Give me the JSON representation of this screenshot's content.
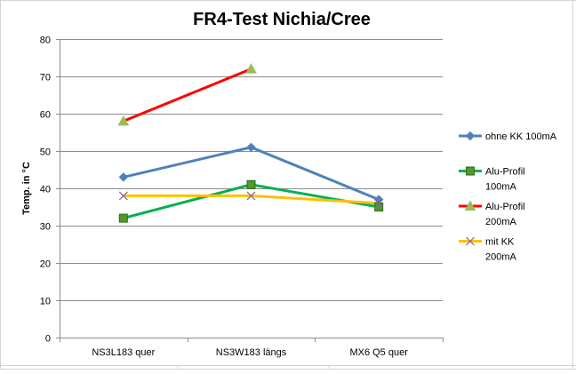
{
  "colors": {
    "gridline": "#8c8c8c",
    "axis": "#8c8c8c",
    "text": "#000000",
    "sheet_grid": "#d4d4d4"
  },
  "chart_data": {
    "type": "line",
    "title": "FR4-Test Nichia/Cree",
    "xlabel": "",
    "ylabel": "Temp. in °C",
    "categories": [
      "NS3L183 quer",
      "NS3W183 längs",
      "MX6 Q5 quer"
    ],
    "ylim": [
      0,
      80
    ],
    "yticks": [
      0,
      10,
      20,
      30,
      40,
      50,
      60,
      70,
      80
    ],
    "grid": true,
    "legend_position": "right",
    "series": [
      {
        "name": "ohne KK 100mA",
        "legend_lines": [
          "ohne KK 100mA"
        ],
        "values": [
          43,
          51,
          37
        ],
        "color": "#4f81bd",
        "marker": "diamond",
        "marker_fill": "#4f81bd"
      },
      {
        "name": "Alu-Profil 100mA",
        "legend_lines": [
          "Alu-Profil",
          "100mA"
        ],
        "values": [
          32,
          41,
          35
        ],
        "color": "#00b050",
        "marker": "square",
        "marker_fill": "#4e9a2a"
      },
      {
        "name": "Alu-Profil 200mA",
        "legend_lines": [
          "Alu-Profil",
          "200mA"
        ],
        "values": [
          58,
          72,
          null
        ],
        "color": "#ff0000",
        "marker": "triangle",
        "marker_fill": "#9bbb59"
      },
      {
        "name": "mit KK 200mA",
        "legend_lines": [
          "mit KK",
          "200mA"
        ],
        "values": [
          38,
          38,
          36
        ],
        "color": "#ffc000",
        "marker": "x",
        "marker_fill": "#8064a2"
      }
    ]
  }
}
